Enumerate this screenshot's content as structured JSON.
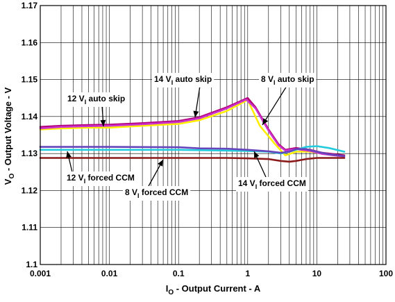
{
  "chart_data": {
    "type": "line",
    "xscale": "log",
    "xlim": [
      0.001,
      100
    ],
    "ylim": [
      1.1,
      1.17
    ],
    "x_tick_labels": [
      "0.001",
      "0.01",
      "0.1",
      "1",
      "10",
      "100"
    ],
    "y_tick_labels": [
      "1.1",
      "1.11",
      "1.12",
      "1.13",
      "1.14",
      "1.15",
      "1.16",
      "1.17"
    ],
    "xlabel": {
      "pre": "I",
      "sub": "O",
      "post": " - Output Current - A"
    },
    "ylabel": {
      "pre": "V",
      "sub": "O",
      "post": " - Output Voltage - V"
    },
    "grid": true,
    "series": [
      {
        "name": "12 V auto skip",
        "color": "#ffee00",
        "x": [
          0.001,
          0.002,
          0.005,
          0.01,
          0.03,
          0.1,
          0.2,
          0.5,
          1.0,
          1.5,
          2.5,
          3.5,
          5,
          8,
          12,
          18,
          25
        ],
        "y": [
          1.1365,
          1.1368,
          1.137,
          1.137,
          1.1375,
          1.138,
          1.139,
          1.1415,
          1.1445,
          1.1375,
          1.1325,
          1.1295,
          1.1305,
          1.1305,
          1.13,
          1.1297,
          1.1295
        ]
      },
      {
        "name": "14 V auto skip",
        "color": "#b0007a",
        "x": [
          0.001,
          0.002,
          0.005,
          0.01,
          0.03,
          0.1,
          0.2,
          0.5,
          1.0,
          1.3,
          2.0,
          2.8,
          3.5,
          5,
          8,
          12,
          18,
          25
        ],
        "y": [
          1.1372,
          1.1375,
          1.1377,
          1.1378,
          1.1382,
          1.1388,
          1.1398,
          1.1425,
          1.145,
          1.1425,
          1.1365,
          1.1325,
          1.131,
          1.1315,
          1.131,
          1.1302,
          1.1298,
          1.1295
        ]
      },
      {
        "name": "8 V auto skip",
        "color": "#cc33cc",
        "x": [
          0.001,
          0.002,
          0.005,
          0.01,
          0.03,
          0.1,
          0.2,
          0.5,
          0.95,
          1.3,
          2.0,
          2.8,
          3.5,
          5,
          8,
          12,
          18,
          25
        ],
        "y": [
          1.1368,
          1.1372,
          1.1374,
          1.1375,
          1.1379,
          1.1385,
          1.1395,
          1.1422,
          1.1446,
          1.1422,
          1.1362,
          1.1322,
          1.1308,
          1.1312,
          1.1307,
          1.1299,
          1.1295,
          1.1292
        ]
      },
      {
        "name": "12 V forced CCM",
        "color": "#22ccdd",
        "x": [
          0.001,
          0.01,
          0.1,
          0.5,
          1,
          2,
          3,
          4,
          5,
          7,
          10,
          15,
          25
        ],
        "y": [
          1.131,
          1.131,
          1.131,
          1.1308,
          1.1307,
          1.1305,
          1.13,
          1.1305,
          1.131,
          1.1318,
          1.132,
          1.1315,
          1.1305
        ]
      },
      {
        "name": "14 V forced CCM",
        "color": "#6644bb",
        "x": [
          0.001,
          0.01,
          0.1,
          0.2,
          0.5,
          1,
          2,
          3,
          4,
          5,
          7,
          10,
          15,
          25
        ],
        "y": [
          1.1318,
          1.1318,
          1.1317,
          1.1314,
          1.1313,
          1.131,
          1.1306,
          1.1302,
          1.1305,
          1.1312,
          1.1312,
          1.1305,
          1.1298,
          1.1293
        ]
      },
      {
        "name": "8 V forced CCM",
        "color": "#8b1a1a",
        "x": [
          0.001,
          0.01,
          0.1,
          0.5,
          1,
          2,
          3,
          4,
          5,
          7,
          10,
          15,
          25
        ],
        "y": [
          1.1288,
          1.1288,
          1.1288,
          1.1288,
          1.1287,
          1.1285,
          1.128,
          1.1278,
          1.128,
          1.1285,
          1.1288,
          1.1288,
          1.1288
        ]
      }
    ],
    "annotations": [
      {
        "pre": "12 V",
        "sub": "I",
        "post": " auto skip"
      },
      {
        "pre": "14 V",
        "sub": "I",
        "post": " auto skip"
      },
      {
        "pre": "8 V",
        "sub": "I",
        "post": " auto skip"
      },
      {
        "pre": "12 V",
        "sub": "I",
        "post": " forced CCM"
      },
      {
        "pre": "8 V",
        "sub": "I",
        "post": " forced CCM"
      },
      {
        "pre": "14 V",
        "sub": "I",
        "post": " forced CCM"
      }
    ]
  }
}
